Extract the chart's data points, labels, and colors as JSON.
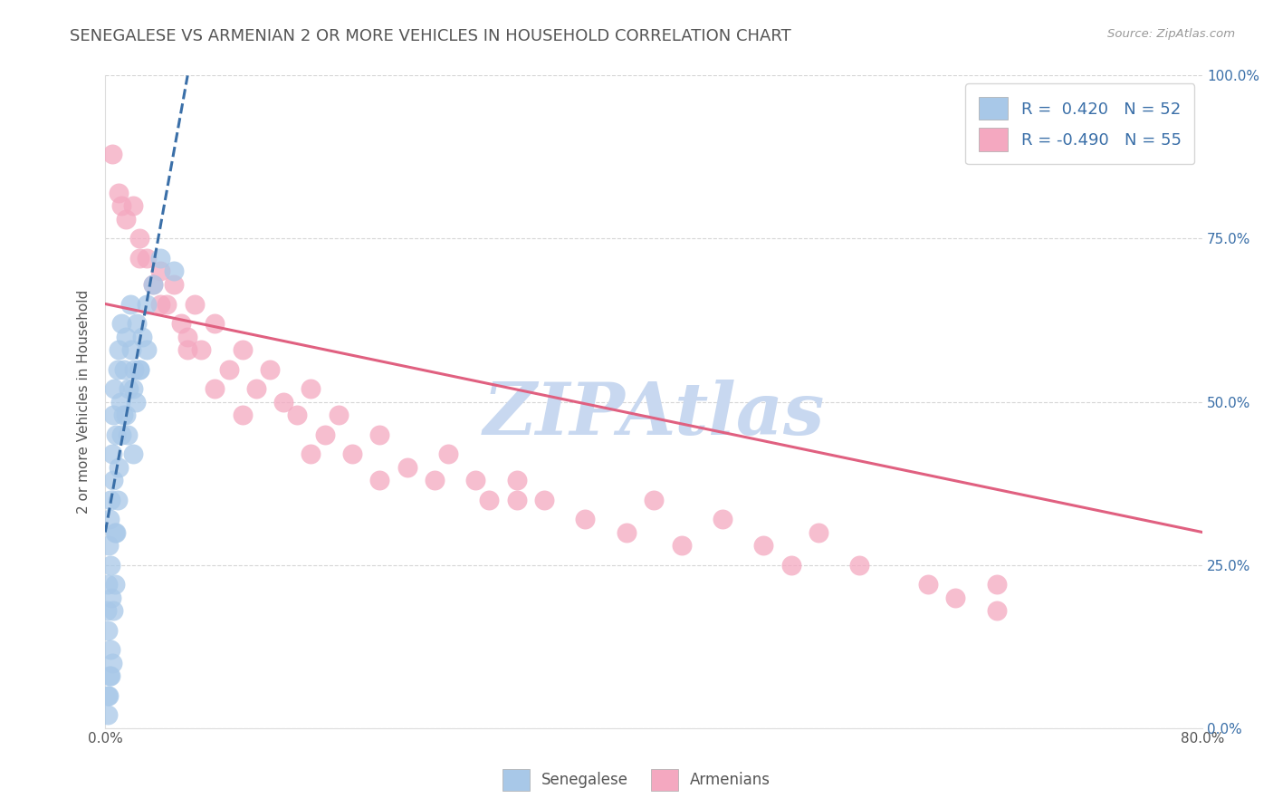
{
  "title": "SENEGALESE VS ARMENIAN 2 OR MORE VEHICLES IN HOUSEHOLD CORRELATION CHART",
  "source": "Source: ZipAtlas.com",
  "ylabel": "2 or more Vehicles in Household",
  "senegalese_R": 0.42,
  "senegalese_N": 52,
  "armenian_R": -0.49,
  "armenian_N": 55,
  "senegalese_color": "#A8C8E8",
  "armenian_color": "#F4A8C0",
  "senegalese_line_color": "#3A6FA8",
  "armenian_line_color": "#E06080",
  "background_color": "#FFFFFF",
  "grid_color": "#CCCCCC",
  "title_color": "#555555",
  "watermark": "ZIPAtlas",
  "watermark_color": "#C8D8F0",
  "legend_text_color": "#3A6FA8",
  "xmin": 0.0,
  "xmax": 80.0,
  "ymin": 0.0,
  "ymax": 100.0,
  "senegalese_x": [
    0.1,
    0.15,
    0.2,
    0.25,
    0.3,
    0.35,
    0.4,
    0.45,
    0.5,
    0.55,
    0.6,
    0.65,
    0.7,
    0.8,
    0.9,
    1.0,
    1.1,
    1.2,
    1.3,
    1.4,
    1.5,
    1.6,
    1.7,
    1.8,
    1.9,
    2.0,
    2.1,
    2.2,
    2.3,
    2.5,
    2.7,
    3.0,
    0.2,
    0.3,
    0.4,
    0.5,
    0.6,
    0.7,
    0.8,
    0.9,
    1.0,
    1.2,
    1.5,
    2.0,
    2.5,
    3.0,
    0.15,
    0.25,
    0.35,
    3.5,
    4.0,
    5.0
  ],
  "senegalese_y": [
    18.0,
    22.0,
    15.0,
    28.0,
    32.0,
    25.0,
    35.0,
    20.0,
    42.0,
    48.0,
    38.0,
    52.0,
    30.0,
    45.0,
    55.0,
    58.0,
    50.0,
    62.0,
    48.0,
    55.0,
    60.0,
    45.0,
    52.0,
    65.0,
    58.0,
    42.0,
    55.0,
    50.0,
    62.0,
    55.0,
    60.0,
    65.0,
    5.0,
    8.0,
    12.0,
    10.0,
    18.0,
    22.0,
    30.0,
    35.0,
    40.0,
    45.0,
    48.0,
    52.0,
    55.0,
    58.0,
    2.0,
    5.0,
    8.0,
    68.0,
    72.0,
    70.0
  ],
  "armenian_x": [
    0.5,
    1.0,
    1.5,
    2.0,
    2.5,
    3.0,
    3.5,
    4.0,
    4.5,
    5.0,
    5.5,
    6.0,
    6.5,
    7.0,
    8.0,
    9.0,
    10.0,
    11.0,
    12.0,
    13.0,
    14.0,
    15.0,
    16.0,
    17.0,
    18.0,
    20.0,
    22.0,
    24.0,
    25.0,
    27.0,
    28.0,
    30.0,
    32.0,
    35.0,
    38.0,
    40.0,
    42.0,
    45.0,
    48.0,
    50.0,
    52.0,
    55.0,
    60.0,
    62.0,
    65.0,
    1.2,
    2.5,
    4.0,
    6.0,
    8.0,
    10.0,
    15.0,
    20.0,
    65.0,
    30.0
  ],
  "armenian_y": [
    88.0,
    82.0,
    78.0,
    80.0,
    75.0,
    72.0,
    68.0,
    70.0,
    65.0,
    68.0,
    62.0,
    60.0,
    65.0,
    58.0,
    62.0,
    55.0,
    58.0,
    52.0,
    55.0,
    50.0,
    48.0,
    52.0,
    45.0,
    48.0,
    42.0,
    45.0,
    40.0,
    38.0,
    42.0,
    38.0,
    35.0,
    38.0,
    35.0,
    32.0,
    30.0,
    35.0,
    28.0,
    32.0,
    28.0,
    25.0,
    30.0,
    25.0,
    22.0,
    20.0,
    18.0,
    80.0,
    72.0,
    65.0,
    58.0,
    52.0,
    48.0,
    42.0,
    38.0,
    22.0,
    35.0
  ],
  "arm_trend_x0": 0.0,
  "arm_trend_y0": 65.0,
  "arm_trend_x1": 80.0,
  "arm_trend_y1": 30.0,
  "sen_trend_x0": 0.0,
  "sen_trend_y0": 30.0,
  "sen_trend_x1": 6.0,
  "sen_trend_y1": 100.0
}
